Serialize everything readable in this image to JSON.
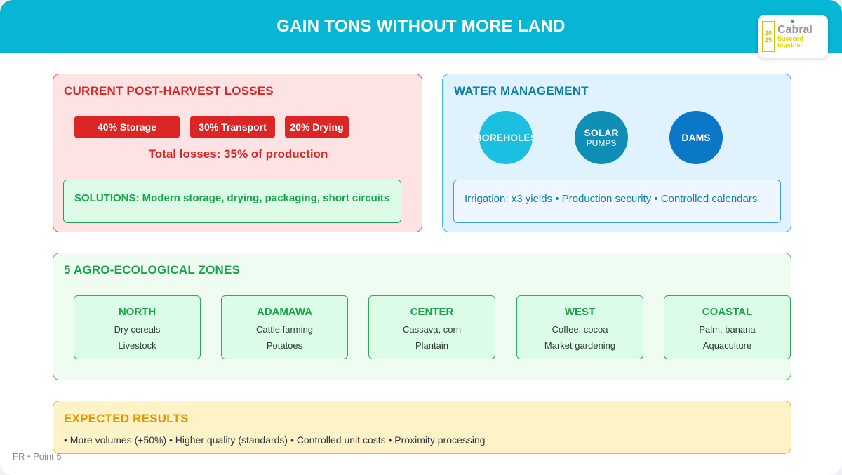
{
  "header": {
    "title": "GAIN TONS WITHOUT MORE LAND"
  },
  "logo": {
    "year_top": "20",
    "year_bottom": "25",
    "brand": "Cabral",
    "tagline_1": "Succeed",
    "tagline_2": "together"
  },
  "losses": {
    "title": "CURRENT POST-HARVEST LOSSES",
    "pills": [
      "40% Storage",
      "30% Transport",
      "20% Drying"
    ],
    "total": "Total losses: 35% of production",
    "solutions": "SOLUTIONS: Modern storage, drying, packaging, short circuits"
  },
  "water": {
    "title": "WATER MANAGEMENT",
    "circles": [
      {
        "main": "BOREHOLES",
        "sub": "",
        "color": "#1bbfe0"
      },
      {
        "main": "SOLAR",
        "sub": "PUMPS",
        "color": "#0f8fb5"
      },
      {
        "main": "DAMS",
        "sub": "",
        "color": "#0b77c7"
      }
    ],
    "benefits": "Irrigation: x3 yields • Production security • Controlled calendars"
  },
  "zones": {
    "title": "5 AGRO-ECOLOGICAL ZONES",
    "items": [
      {
        "name": "NORTH",
        "line1": "Dry cereals",
        "line2": "Livestock"
      },
      {
        "name": "ADAMAWA",
        "line1": "Cattle farming",
        "line2": "Potatoes"
      },
      {
        "name": "CENTER",
        "line1": "Cassava, corn",
        "line2": "Plantain"
      },
      {
        "name": "WEST",
        "line1": "Coffee, cocoa",
        "line2": "Market gardening"
      },
      {
        "name": "COASTAL",
        "line1": "Palm, banana",
        "line2": "Aquaculture"
      }
    ]
  },
  "results": {
    "title": "EXPECTED RESULTS",
    "text": "• More volumes (+50%) • Higher quality (standards) • Controlled unit costs • Proximity processing"
  },
  "footer": {
    "text": "FR • Point 5"
  },
  "colors": {
    "header": "#06b6d4",
    "loss_red": "#dc2626",
    "zone_green": "#16a34a",
    "results_orange": "#e69500"
  }
}
